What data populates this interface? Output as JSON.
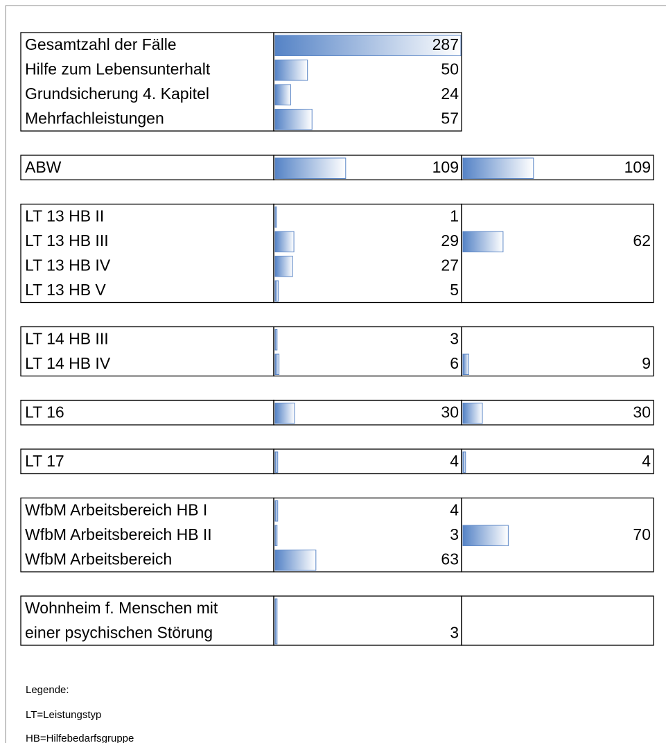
{
  "groups": [
    {
      "rows": [
        {
          "label": "Gesamtzahl der Fälle",
          "value": 287
        },
        {
          "label": "Hilfe zum Lebensunterhalt",
          "value": 50
        },
        {
          "label": "Grundsicherung 4. Kapitel",
          "value": 24
        },
        {
          "label": "Mehrfachleistungen",
          "value": 57
        }
      ]
    },
    {
      "rows": [
        {
          "label": "ABW",
          "value": 109
        }
      ],
      "total": 109
    },
    {
      "rows": [
        {
          "label": "LT 13 HB II",
          "value": 1
        },
        {
          "label": "LT 13 HB III",
          "value": 29
        },
        {
          "label": "LT 13 HB IV",
          "value": 27
        },
        {
          "label": "LT 13 HB V",
          "value": 5
        }
      ],
      "total": 62
    },
    {
      "rows": [
        {
          "label": "LT 14 HB III",
          "value": 3
        },
        {
          "label": "LT 14 HB IV",
          "value": 6
        }
      ],
      "total": 9
    },
    {
      "rows": [
        {
          "label": "LT 16",
          "value": 30
        }
      ],
      "total": 30
    },
    {
      "rows": [
        {
          "label": "LT 17",
          "value": 4
        }
      ],
      "total": 4
    },
    {
      "rows": [
        {
          "label": "WfbM Arbeitsbereich HB I",
          "value": 4
        },
        {
          "label": "WfbM Arbeitsbereich HB II",
          "value": 3
        },
        {
          "label": "WfbM Arbeitsbereich",
          "value": 63
        }
      ],
      "total": 70
    },
    {
      "rows": [
        {
          "label": [
            "Wohnheim f. Menschen mit",
            "einer psychischen Störung"
          ],
          "value": 3
        }
      ],
      "total": null
    }
  ],
  "legend": [
    "Legende:",
    "LT=Leistungstyp",
    "HB=Hilfebedarfsgruppe"
  ]
}
